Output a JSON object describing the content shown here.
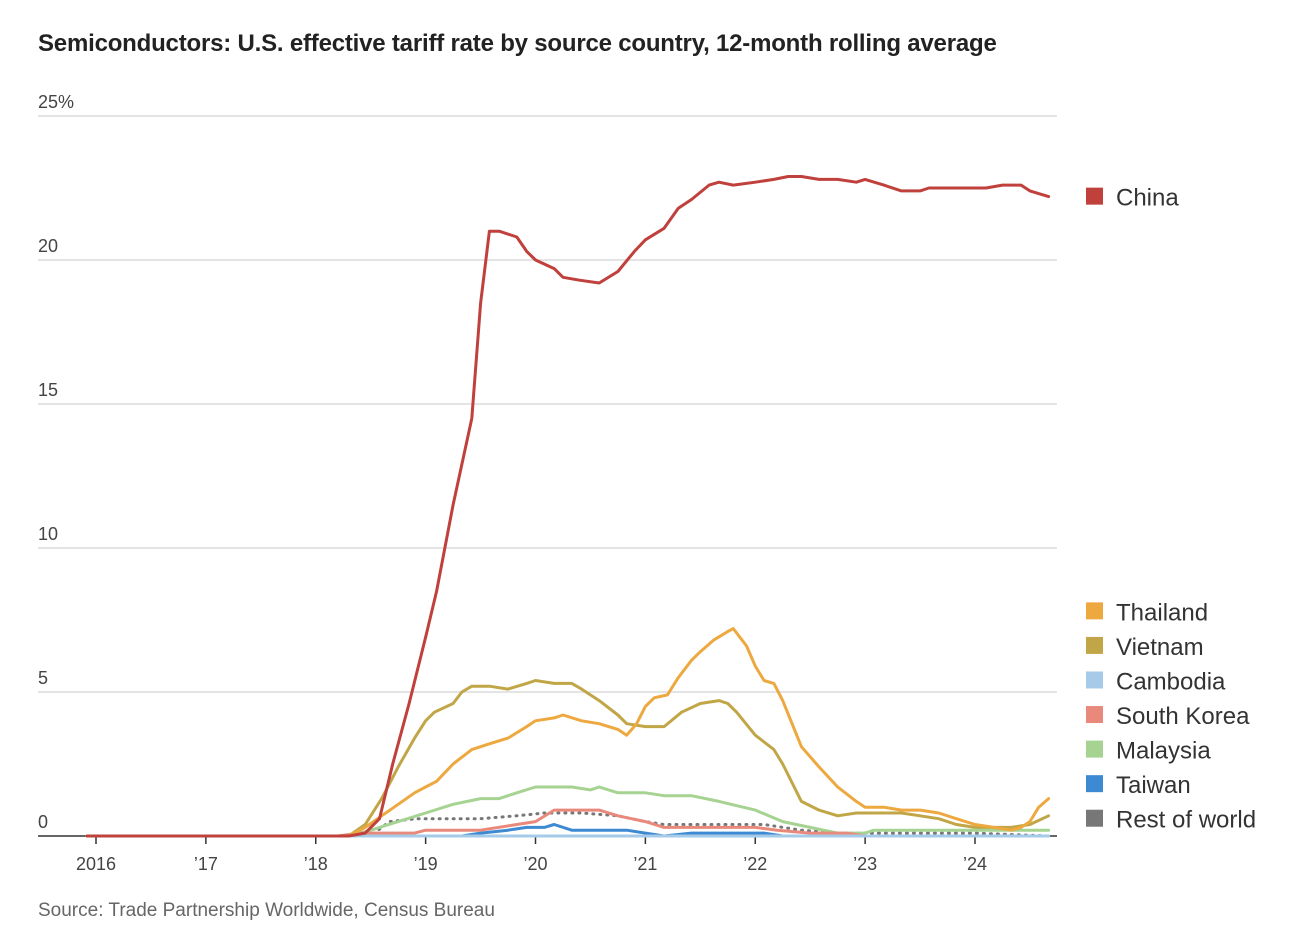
{
  "title": "Semiconductors: U.S. effective tariff rate by source country, 12-month rolling average",
  "source": "Source: Trade Partnership Worldwide, Census Bureau",
  "chart_data": {
    "type": "line",
    "title": "Semiconductors: U.S. effective tariff rate by source country, 12-month rolling average",
    "xlabel": "",
    "ylabel": "",
    "xlim": [
      2015.92,
      2024.75
    ],
    "ylim": [
      0,
      25
    ],
    "grid": true,
    "y_ticks": [
      {
        "value": 0,
        "label": "0"
      },
      {
        "value": 5,
        "label": "5"
      },
      {
        "value": 10,
        "label": "10"
      },
      {
        "value": 15,
        "label": "15"
      },
      {
        "value": 20,
        "label": "20"
      },
      {
        "value": 25,
        "label": "25%"
      }
    ],
    "x_ticks": [
      {
        "value": 2016,
        "label": "2016"
      },
      {
        "value": 2017,
        "label": "’17"
      },
      {
        "value": 2018,
        "label": "’18"
      },
      {
        "value": 2019,
        "label": "’19"
      },
      {
        "value": 2020,
        "label": "’20"
      },
      {
        "value": 2021,
        "label": "’21"
      },
      {
        "value": 2022,
        "label": "’22"
      },
      {
        "value": 2023,
        "label": "’23"
      },
      {
        "value": 2024,
        "label": "’24"
      }
    ],
    "series": [
      {
        "name": "China",
        "color": "#c0403c",
        "legend_y": 22.2,
        "points": [
          [
            2015.92,
            0
          ],
          [
            2018.3,
            0
          ],
          [
            2018.45,
            0.1
          ],
          [
            2018.58,
            0.6
          ],
          [
            2018.7,
            2.5
          ],
          [
            2018.85,
            4.6
          ],
          [
            2019.0,
            6.9
          ],
          [
            2019.1,
            8.5
          ],
          [
            2019.25,
            11.5
          ],
          [
            2019.42,
            14.5
          ],
          [
            2019.5,
            18.5
          ],
          [
            2019.58,
            21.0
          ],
          [
            2019.67,
            21.0
          ],
          [
            2019.83,
            20.8
          ],
          [
            2019.92,
            20.3
          ],
          [
            2020.0,
            20.0
          ],
          [
            2020.17,
            19.7
          ],
          [
            2020.25,
            19.4
          ],
          [
            2020.4,
            19.3
          ],
          [
            2020.58,
            19.2
          ],
          [
            2020.75,
            19.6
          ],
          [
            2020.9,
            20.3
          ],
          [
            2021.0,
            20.7
          ],
          [
            2021.17,
            21.1
          ],
          [
            2021.3,
            21.8
          ],
          [
            2021.42,
            22.1
          ],
          [
            2021.58,
            22.6
          ],
          [
            2021.67,
            22.7
          ],
          [
            2021.8,
            22.6
          ],
          [
            2022.0,
            22.7
          ],
          [
            2022.17,
            22.8
          ],
          [
            2022.3,
            22.9
          ],
          [
            2022.42,
            22.9
          ],
          [
            2022.58,
            22.8
          ],
          [
            2022.75,
            22.8
          ],
          [
            2022.92,
            22.7
          ],
          [
            2023.0,
            22.8
          ],
          [
            2023.17,
            22.6
          ],
          [
            2023.33,
            22.4
          ],
          [
            2023.5,
            22.4
          ],
          [
            2023.58,
            22.5
          ],
          [
            2023.75,
            22.5
          ],
          [
            2023.92,
            22.5
          ],
          [
            2024.1,
            22.5
          ],
          [
            2024.25,
            22.6
          ],
          [
            2024.42,
            22.6
          ],
          [
            2024.5,
            22.4
          ],
          [
            2024.67,
            22.2
          ]
        ]
      },
      {
        "name": "Thailand",
        "color": "#eda83f",
        "legend_y": 7.8,
        "points": [
          [
            2015.92,
            0
          ],
          [
            2018.3,
            0
          ],
          [
            2018.45,
            0.3
          ],
          [
            2018.6,
            0.7
          ],
          [
            2018.75,
            1.1
          ],
          [
            2018.9,
            1.5
          ],
          [
            2019.0,
            1.7
          ],
          [
            2019.1,
            1.9
          ],
          [
            2019.25,
            2.5
          ],
          [
            2019.42,
            3.0
          ],
          [
            2019.58,
            3.2
          ],
          [
            2019.75,
            3.4
          ],
          [
            2019.92,
            3.8
          ],
          [
            2020.0,
            4.0
          ],
          [
            2020.17,
            4.1
          ],
          [
            2020.25,
            4.2
          ],
          [
            2020.42,
            4.0
          ],
          [
            2020.58,
            3.9
          ],
          [
            2020.75,
            3.7
          ],
          [
            2020.83,
            3.5
          ],
          [
            2020.92,
            3.9
          ],
          [
            2021.0,
            4.5
          ],
          [
            2021.08,
            4.8
          ],
          [
            2021.2,
            4.9
          ],
          [
            2021.3,
            5.5
          ],
          [
            2021.42,
            6.1
          ],
          [
            2021.5,
            6.4
          ],
          [
            2021.62,
            6.8
          ],
          [
            2021.75,
            7.1
          ],
          [
            2021.8,
            7.2
          ],
          [
            2021.92,
            6.6
          ],
          [
            2022.0,
            5.9
          ],
          [
            2022.08,
            5.4
          ],
          [
            2022.17,
            5.3
          ],
          [
            2022.25,
            4.7
          ],
          [
            2022.42,
            3.1
          ],
          [
            2022.58,
            2.4
          ],
          [
            2022.75,
            1.7
          ],
          [
            2022.92,
            1.2
          ],
          [
            2023.0,
            1.0
          ],
          [
            2023.17,
            1.0
          ],
          [
            2023.33,
            0.9
          ],
          [
            2023.5,
            0.9
          ],
          [
            2023.67,
            0.8
          ],
          [
            2023.83,
            0.6
          ],
          [
            2024.0,
            0.4
          ],
          [
            2024.17,
            0.3
          ],
          [
            2024.33,
            0.2
          ],
          [
            2024.42,
            0.3
          ],
          [
            2024.5,
            0.5
          ],
          [
            2024.58,
            1.0
          ],
          [
            2024.67,
            1.3
          ]
        ]
      },
      {
        "name": "Vietnam",
        "color": "#c1a648",
        "legend_y": 6.6,
        "points": [
          [
            2015.92,
            0
          ],
          [
            2018.3,
            0
          ],
          [
            2018.45,
            0.4
          ],
          [
            2018.6,
            1.3
          ],
          [
            2018.75,
            2.4
          ],
          [
            2018.9,
            3.4
          ],
          [
            2019.0,
            4.0
          ],
          [
            2019.08,
            4.3
          ],
          [
            2019.25,
            4.6
          ],
          [
            2019.33,
            5.0
          ],
          [
            2019.42,
            5.2
          ],
          [
            2019.58,
            5.2
          ],
          [
            2019.75,
            5.1
          ],
          [
            2019.92,
            5.3
          ],
          [
            2020.0,
            5.4
          ],
          [
            2020.17,
            5.3
          ],
          [
            2020.33,
            5.3
          ],
          [
            2020.42,
            5.1
          ],
          [
            2020.58,
            4.7
          ],
          [
            2020.75,
            4.2
          ],
          [
            2020.83,
            3.9
          ],
          [
            2021.0,
            3.8
          ],
          [
            2021.17,
            3.8
          ],
          [
            2021.33,
            4.3
          ],
          [
            2021.5,
            4.6
          ],
          [
            2021.67,
            4.7
          ],
          [
            2021.75,
            4.6
          ],
          [
            2021.83,
            4.3
          ],
          [
            2022.0,
            3.5
          ],
          [
            2022.17,
            3.0
          ],
          [
            2022.25,
            2.5
          ],
          [
            2022.42,
            1.2
          ],
          [
            2022.58,
            0.9
          ],
          [
            2022.75,
            0.7
          ],
          [
            2022.92,
            0.8
          ],
          [
            2023.17,
            0.8
          ],
          [
            2023.33,
            0.8
          ],
          [
            2023.5,
            0.7
          ],
          [
            2023.67,
            0.6
          ],
          [
            2023.83,
            0.4
          ],
          [
            2024.0,
            0.3
          ],
          [
            2024.33,
            0.3
          ],
          [
            2024.5,
            0.4
          ],
          [
            2024.67,
            0.7
          ]
        ]
      },
      {
        "name": "Cambodia",
        "color": "#a6cbe8",
        "legend_y": 5.4,
        "points": [
          [
            2015.92,
            0
          ],
          [
            2024.67,
            0
          ]
        ]
      },
      {
        "name": "South Korea",
        "color": "#e9897c",
        "legend_y": 4.2,
        "points": [
          [
            2015.92,
            0
          ],
          [
            2018.2,
            0
          ],
          [
            2018.4,
            0.1
          ],
          [
            2018.9,
            0.1
          ],
          [
            2019.0,
            0.2
          ],
          [
            2019.5,
            0.2
          ],
          [
            2019.83,
            0.4
          ],
          [
            2020.0,
            0.5
          ],
          [
            2020.17,
            0.9
          ],
          [
            2020.58,
            0.9
          ],
          [
            2020.75,
            0.7
          ],
          [
            2021.0,
            0.5
          ],
          [
            2021.17,
            0.3
          ],
          [
            2021.5,
            0.3
          ],
          [
            2022.0,
            0.3
          ],
          [
            2022.2,
            0.2
          ],
          [
            2022.5,
            0.1
          ],
          [
            2022.83,
            0.1
          ],
          [
            2023.0,
            0
          ],
          [
            2024.67,
            0
          ]
        ]
      },
      {
        "name": "Malaysia",
        "color": "#a6d391",
        "legend_y": 3.0,
        "points": [
          [
            2015.92,
            0
          ],
          [
            2018.3,
            0
          ],
          [
            2018.5,
            0.2
          ],
          [
            2018.75,
            0.5
          ],
          [
            2019.0,
            0.8
          ],
          [
            2019.25,
            1.1
          ],
          [
            2019.5,
            1.3
          ],
          [
            2019.67,
            1.3
          ],
          [
            2019.83,
            1.5
          ],
          [
            2020.0,
            1.7
          ],
          [
            2020.33,
            1.7
          ],
          [
            2020.5,
            1.6
          ],
          [
            2020.58,
            1.7
          ],
          [
            2020.75,
            1.5
          ],
          [
            2021.0,
            1.5
          ],
          [
            2021.17,
            1.4
          ],
          [
            2021.42,
            1.4
          ],
          [
            2021.67,
            1.2
          ],
          [
            2022.0,
            0.9
          ],
          [
            2022.25,
            0.5
          ],
          [
            2022.5,
            0.3
          ],
          [
            2022.75,
            0.1
          ],
          [
            2023.0,
            0.1
          ],
          [
            2023.08,
            0.2
          ],
          [
            2023.5,
            0.2
          ],
          [
            2024.0,
            0.2
          ],
          [
            2024.67,
            0.2
          ]
        ]
      },
      {
        "name": "Taiwan",
        "color": "#3d8ad3",
        "legend_y": 1.8,
        "points": [
          [
            2015.92,
            0
          ],
          [
            2019.33,
            0
          ],
          [
            2019.5,
            0.1
          ],
          [
            2019.75,
            0.2
          ],
          [
            2019.92,
            0.3
          ],
          [
            2020.08,
            0.3
          ],
          [
            2020.17,
            0.4
          ],
          [
            2020.33,
            0.2
          ],
          [
            2020.83,
            0.2
          ],
          [
            2021.0,
            0.1
          ],
          [
            2021.17,
            0
          ],
          [
            2021.42,
            0.1
          ],
          [
            2022.08,
            0.1
          ],
          [
            2022.25,
            0
          ],
          [
            2024.67,
            0
          ]
        ]
      },
      {
        "name": "Rest of world",
        "color": "#777777",
        "dashed": true,
        "legend_y": 0.6,
        "points": [
          [
            2015.92,
            0
          ],
          [
            2018.5,
            0
          ],
          [
            2018.67,
            0.5
          ],
          [
            2018.92,
            0.6
          ],
          [
            2019.5,
            0.6
          ],
          [
            2019.83,
            0.7
          ],
          [
            2020.08,
            0.8
          ],
          [
            2020.42,
            0.8
          ],
          [
            2020.75,
            0.7
          ],
          [
            2021.0,
            0.5
          ],
          [
            2021.17,
            0.4
          ],
          [
            2021.75,
            0.4
          ],
          [
            2022.08,
            0.4
          ],
          [
            2022.42,
            0.2
          ],
          [
            2022.75,
            0.1
          ],
          [
            2023.0,
            0.1
          ],
          [
            2023.5,
            0.1
          ],
          [
            2024.0,
            0.1
          ],
          [
            2024.67,
            0
          ]
        ]
      }
    ]
  }
}
